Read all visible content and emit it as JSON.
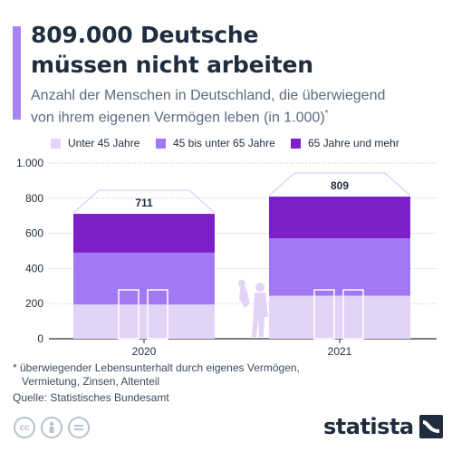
{
  "header": {
    "title_line1": "809.000 Deutsche",
    "title_line2": "müssen nicht arbeiten",
    "subtitle_line1": "Anzahl der Menschen in Deutschland, die überwiegend",
    "subtitle_line2": "von ihrem eigenen Vermögen leben (in 1.000)",
    "subtitle_mark": "*"
  },
  "colors": {
    "accent": "#a685f2",
    "under45": "#e3d4f7",
    "mid": "#a279f4",
    "over65": "#7b1fc9",
    "roof": "#d9c9f3"
  },
  "chart_data": {
    "type": "bar",
    "stacked": true,
    "categories": [
      "2020",
      "2021"
    ],
    "series": [
      {
        "name": "Unter 45 Jahre",
        "values": [
          195,
          245
        ]
      },
      {
        "name": "45 bis unter 65 Jahre",
        "values": [
          295,
          327
        ]
      },
      {
        "name": "65 Jahre und mehr",
        "values": [
          221,
          237
        ]
      }
    ],
    "totals": [
      "711",
      "809"
    ],
    "ylim": [
      0,
      1000
    ],
    "yticks": [
      0,
      200,
      400,
      600,
      800,
      1000
    ],
    "ytick_labels": [
      "0",
      "200",
      "400",
      "600",
      "800",
      "1.000"
    ],
    "grid": true,
    "legend": "top"
  },
  "footnote": {
    "line1": "* überwiegender Lebensunterhalt durch eigenes Vermögen,",
    "line2": "Vermietung, Zinsen, Altenteil"
  },
  "source": "Quelle: Statistisches Bundesamt",
  "license_icons": [
    "cc-icon",
    "by-icon",
    "equals-icon"
  ],
  "logo": "statista"
}
